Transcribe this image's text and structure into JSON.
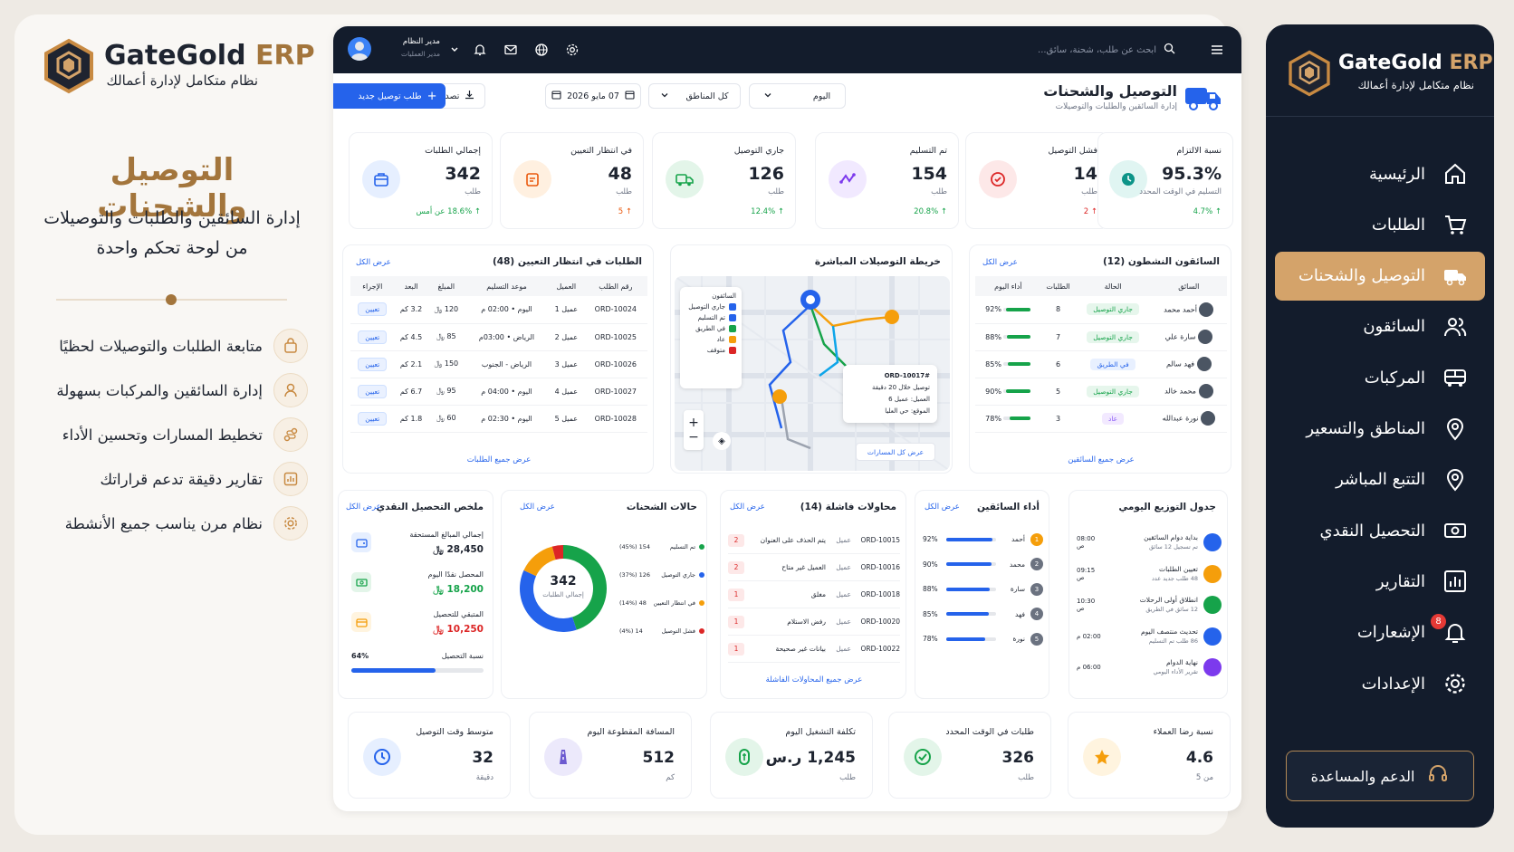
{
  "brand": {
    "name_main": "GateGold",
    "name_accent": "ERP",
    "tagline": "نظام متكامل لإدارة أعمالك"
  },
  "promo": {
    "title": "التوصيل والشحنات",
    "desc_line1": "إدارة السائقين والطلبات والتوصيلات",
    "desc_line2": "من لوحة تحكم واحدة",
    "features": [
      {
        "label": "متابعة الطلبات والتوصيلات لحظيًا",
        "icon": "bag-icon"
      },
      {
        "label": "إدارة السائقين والمركبات بسهولة",
        "icon": "user-icon"
      },
      {
        "label": "تخطيط المسارات وتحسين الأداء",
        "icon": "route-icon"
      },
      {
        "label": "تقارير دقيقة تدعم قراراتك",
        "icon": "report-icon"
      },
      {
        "label": "نظام مرن يناسب جميع الأنشطة",
        "icon": "gear-icon"
      }
    ]
  },
  "topbar": {
    "user_name": "مدير النظام",
    "user_role": "مدير العمليات",
    "search_placeholder": "ابحث عن طلب، شحنة، سائق..."
  },
  "page": {
    "title": "التوصيل والشحنات",
    "subtitle": "إدارة السائقين والطلبات والتوصيلات",
    "filter_today": "اليوم",
    "filter_regions": "كل المناطق",
    "date": "07 مايو 2026",
    "export": "تصدير",
    "new_request": "طلب توصيل جديد"
  },
  "kpis": [
    {
      "label": "نسبة الالتزام",
      "value": "95.3%",
      "unit": "التسليم في الوقت المحدد",
      "trend": "4.7%",
      "trend_color": "green",
      "icon": "clock-icon",
      "color": "#0d9488",
      "bg": "#e0f5f2"
    },
    {
      "label": "فشل التوصيل",
      "value": "14",
      "unit": "طلب",
      "trend": "2",
      "trend_color": "red",
      "icon": "x-circle-icon",
      "color": "#dc2626",
      "bg": "#fde8e8"
    },
    {
      "label": "تم التسليم",
      "value": "154",
      "unit": "طلب",
      "trend": "20.8%",
      "trend_color": "green",
      "icon": "check-route-icon",
      "color": "#7c3aed",
      "bg": "#f1e9ff"
    },
    {
      "label": "جاري التوصيل",
      "value": "126",
      "unit": "طلب",
      "trend": "12.4%",
      "trend_color": "green",
      "icon": "truck-icon",
      "color": "#16a34a",
      "bg": "#e3f5e9"
    },
    {
      "label": "في انتظار التعيين",
      "value": "48",
      "unit": "طلب",
      "trend": "5",
      "trend_color": "orange",
      "icon": "clipboard-icon",
      "color": "#ea580c",
      "bg": "#fff0e0"
    },
    {
      "label": "إجمالي الطلبات",
      "value": "342",
      "unit": "طلب",
      "trend": "18.6% عن أمس",
      "trend_color": "green",
      "icon": "box-icon",
      "color": "#2563eb",
      "bg": "#e6efff"
    }
  ],
  "pending": {
    "title": "الطلبات في انتظار التعيين (48)",
    "view_all": "عرض الكل",
    "footer": "عرض جميع الطلبات",
    "headers": [
      "رقم الطلب",
      "العميل",
      "موعد التسليم",
      "المبلغ",
      "البعد",
      "الإجراء"
    ],
    "rows": [
      {
        "id": "ORD-10024",
        "client": "عميل 1",
        "time": "اليوم • 02:00 م",
        "amount": "120 ﷼",
        "dist": "3.2 كم",
        "action": "تعيين"
      },
      {
        "id": "ORD-10025",
        "client": "عميل 2",
        "time": "الرياض • 03:00م",
        "amount": "85 ﷼",
        "dist": "4.5 كم",
        "action": "تعيين"
      },
      {
        "id": "ORD-10026",
        "client": "عميل 3",
        "time": "الرياض - الجنوب",
        "amount": "150 ﷼",
        "dist": "2.1 كم",
        "action": "تعيين"
      },
      {
        "id": "ORD-10027",
        "client": "عميل 4",
        "time": "اليوم • 04:00 م",
        "amount": "95 ﷼",
        "dist": "6.7 كم",
        "action": "تعيين"
      },
      {
        "id": "ORD-10028",
        "client": "عميل 5",
        "time": "اليوم • 02:30 م",
        "amount": "60 ﷼",
        "dist": "1.8 كم",
        "action": "تعيين"
      }
    ]
  },
  "map": {
    "title": "خريطة التوصيلات المباشرة",
    "legend_title": "السائقون",
    "legend": [
      {
        "label": "جاري التوصيل",
        "color": "#2563eb"
      },
      {
        "label": "تم التسليم",
        "color": "#16a34a"
      },
      {
        "label": "في الطريق",
        "color": "#16a34a"
      },
      {
        "label": "عاد",
        "color": "#f59e0b"
      },
      {
        "label": "متوقف",
        "color": "#dc2626"
      }
    ],
    "popup_id": "#ORD-10017",
    "popup_line1": "توصيل خلال 20 دقيقة",
    "popup_line2": "العميل: عميل 6",
    "popup_line3": "الموقع: حي العليا",
    "routes_button": "عرض كل المسارات"
  },
  "active_drivers": {
    "title": "السائقون النشطون (12)",
    "view_all": "عرض الكل",
    "footer": "عرض جميع السائقين",
    "headers": [
      "السائق",
      "الحالة",
      "الطلبات",
      "أداء اليوم"
    ],
    "rows": [
      {
        "name": "أحمد محمد",
        "status": "جاري التوصيل",
        "status_type": "green",
        "orders": "8",
        "perf": 92
      },
      {
        "name": "سارة علي",
        "status": "جاري التوصيل",
        "status_type": "green",
        "orders": "7",
        "perf": 88
      },
      {
        "name": "فهد سالم",
        "status": "في الطريق",
        "status_type": "blue",
        "orders": "6",
        "perf": 85
      },
      {
        "name": "محمد خالد",
        "status": "جاري التوصيل",
        "status_type": "green",
        "orders": "5",
        "perf": 90
      },
      {
        "name": "نورة عبدالله",
        "status": "عاد",
        "status_type": "purple",
        "orders": "3",
        "perf": 78
      }
    ]
  },
  "cash": {
    "title": "ملخص التحصيل النقدي",
    "view_all": "عرض الكل",
    "items": [
      {
        "label": "إجمالي المبالغ المستحقة",
        "value": "28,450 ﷼",
        "color": "#1e2430",
        "icon": "wallet-icon",
        "ic_color": "#2563eb"
      },
      {
        "label": "المحصل نقدًا اليوم",
        "value": "18,200 ﷼",
        "color": "#16a34a",
        "icon": "cash-icon",
        "ic_color": "#16a34a"
      },
      {
        "label": "المتبقي للتحصيل",
        "value": "10,250 ﷼",
        "color": "#dc2626",
        "icon": "card-icon",
        "ic_color": "#f59e0b"
      }
    ],
    "rate_label": "نسبة التحصيل",
    "rate_value": "64%",
    "rate": 64
  },
  "shipments": {
    "title": "حالات الشحنات",
    "view_all": "عرض الكل",
    "center_value": "342",
    "center_label": "إجمالي الطلبات"
  },
  "chart_data": {
    "type": "pie",
    "categories": [
      "تم التسليم",
      "جاري التوصيل",
      "في انتظار التعيين",
      "فشل التوصيل"
    ],
    "values": [
      154,
      126,
      48,
      14
    ],
    "labels": [
      "154 (45%)",
      "126 (37%)",
      "48 (14%)",
      "14 (4%)"
    ],
    "colors": [
      "#16a34a",
      "#2563eb",
      "#f59e0b",
      "#dc2626"
    ]
  },
  "failed": {
    "title": "محاولات فاشلة (14)",
    "view_all": "عرض الكل",
    "footer": "عرض جميع المحاولات الفاشلة",
    "rows": [
      {
        "id": "ORD-10015",
        "client": "عميل",
        "reason": "يتم الحذف على العنوان",
        "count": "2"
      },
      {
        "id": "ORD-10016",
        "client": "عميل",
        "reason": "العميل غير متاح",
        "count": "2"
      },
      {
        "id": "ORD-10018",
        "client": "عميل",
        "reason": "مغلق",
        "count": "1"
      },
      {
        "id": "ORD-10020",
        "client": "عميل",
        "reason": "رفض الاستلام",
        "count": "1"
      },
      {
        "id": "ORD-10022",
        "client": "عميل",
        "reason": "بيانات غير صحيحة",
        "count": "1"
      }
    ]
  },
  "performance": {
    "title": "أداء السائقين",
    "view_all": "عرض الكل",
    "rows": [
      {
        "rank": "1",
        "name": "أحمد",
        "value": 92,
        "label": "92%",
        "badge_color": "#f59e0b"
      },
      {
        "rank": "2",
        "name": "محمد",
        "value": 90,
        "label": "90%",
        "badge_color": "#6b7280"
      },
      {
        "rank": "3",
        "name": "سارة",
        "value": 88,
        "label": "88%",
        "badge_color": "#6b7280"
      },
      {
        "rank": "4",
        "name": "فهد",
        "value": 85,
        "label": "85%",
        "badge_color": "#6b7280"
      },
      {
        "rank": "5",
        "name": "نورة",
        "value": 78,
        "label": "78%",
        "badge_color": "#6b7280"
      }
    ]
  },
  "schedule": {
    "title": "جدول التوزيع اليومي",
    "rows": [
      {
        "title": "بداية دوام السائقين",
        "sub": "تم تسجيل 12 سائق",
        "time": "08:00 ص",
        "color": "#2563eb"
      },
      {
        "title": "تعيين الطلبات",
        "sub": "48 طلب جديد عدد",
        "time": "09:15 ص",
        "color": "#f59e0b"
      },
      {
        "title": "انطلاق أولى الرحلات",
        "sub": "12 سائق في الطريق",
        "time": "10:30 ص",
        "color": "#16a34a"
      },
      {
        "title": "تحديث منتصف اليوم",
        "sub": "86 طلب تم التسليم",
        "time": "02:00 م",
        "color": "#2563eb"
      },
      {
        "title": "نهاية الدوام",
        "sub": "تقرير الأداء اليومي",
        "time": "06:00 م",
        "color": "#7c3aed"
      }
    ]
  },
  "bottom_kpis": [
    {
      "label": "نسبة رضا العملاء",
      "value": "4.6",
      "unit": "من 5",
      "icon": "star-icon",
      "color": "#f59e0b",
      "bg": "#fff4df"
    },
    {
      "label": "طلبات في الوقت المحدد",
      "value": "326",
      "unit": "طلب",
      "icon": "check-circle-icon",
      "color": "#16a34a",
      "bg": "#e3f5e9"
    },
    {
      "label": "تكلفة التشغيل اليوم",
      "value": "1,245 ر.س",
      "unit": "طلب",
      "icon": "money-icon",
      "color": "#16a34a",
      "bg": "#e3f5e9"
    },
    {
      "label": "المسافة المقطوعة اليوم",
      "value": "512",
      "unit": "كم",
      "icon": "road-icon",
      "color": "#6d5bd0",
      "bg": "#ece9fb"
    },
    {
      "label": "متوسط وقت التوصيل",
      "value": "32",
      "unit": "دقيقة",
      "icon": "clock-icon",
      "color": "#2563eb",
      "bg": "#e6efff"
    }
  ],
  "sidebar": {
    "items": [
      {
        "label": "الرئيسية",
        "icon": "home-icon"
      },
      {
        "label": "الطلبات",
        "icon": "cart-icon"
      },
      {
        "label": "التوصيل والشحنات",
        "icon": "truck-icon"
      },
      {
        "label": "السائقون",
        "icon": "users-icon"
      },
      {
        "label": "المركبات",
        "icon": "bus-icon"
      },
      {
        "label": "المناطق والتسعير",
        "icon": "pin-icon"
      },
      {
        "label": "التتبع المباشر",
        "icon": "location-icon"
      },
      {
        "label": "التحصيل النقدي",
        "icon": "cash-icon"
      },
      {
        "label": "التقارير",
        "icon": "chart-icon"
      },
      {
        "label": "الإشعارات",
        "icon": "bell-icon",
        "badge": "8"
      },
      {
        "label": "الإعدادات",
        "icon": "gear-icon"
      }
    ],
    "active_index": 2,
    "support": "الدعم والمساعدة"
  },
  "colors": {
    "navy": "#131c2c",
    "gold": "#d4a36a",
    "gold_text": "#a3753c",
    "primary": "#2563eb"
  }
}
